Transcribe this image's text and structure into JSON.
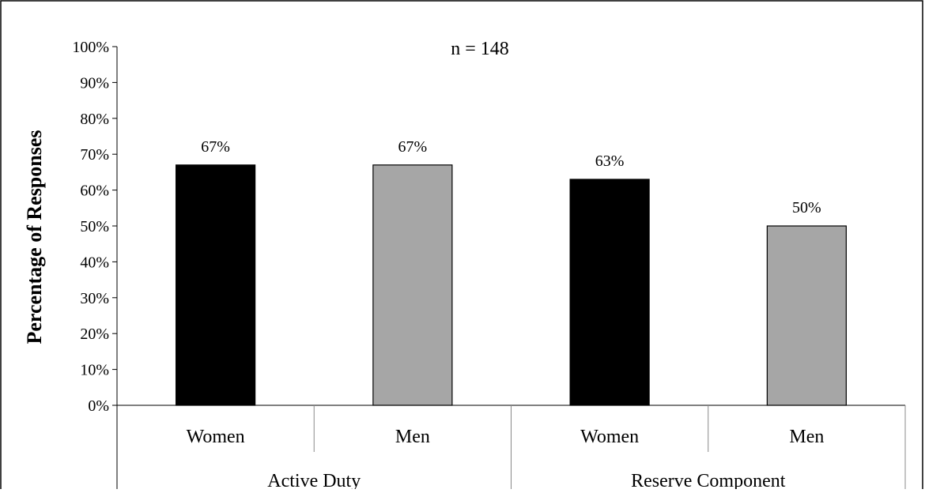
{
  "chart_data": {
    "type": "bar",
    "note": "n = 148",
    "ylabel": "Percentage of Responses",
    "xlabel": "",
    "ylim": [
      0,
      100
    ],
    "yticks": [
      "0%",
      "10%",
      "20%",
      "30%",
      "40%",
      "50%",
      "60%",
      "70%",
      "80%",
      "90%",
      "100%"
    ],
    "groups": [
      {
        "label": "Active Duty",
        "categories": [
          "Women",
          "Men"
        ]
      },
      {
        "label": "Reserve Component",
        "categories": [
          "Women",
          "Men"
        ]
      }
    ],
    "categories": [
      "Women",
      "Men",
      "Women",
      "Men"
    ],
    "values": [
      67,
      67,
      63,
      50
    ],
    "data_labels": [
      "67%",
      "67%",
      "63%",
      "50%"
    ],
    "bar_colors": [
      "#000000",
      "#a6a6a6",
      "#000000",
      "#a6a6a6"
    ],
    "grid": false,
    "legend": "none"
  }
}
